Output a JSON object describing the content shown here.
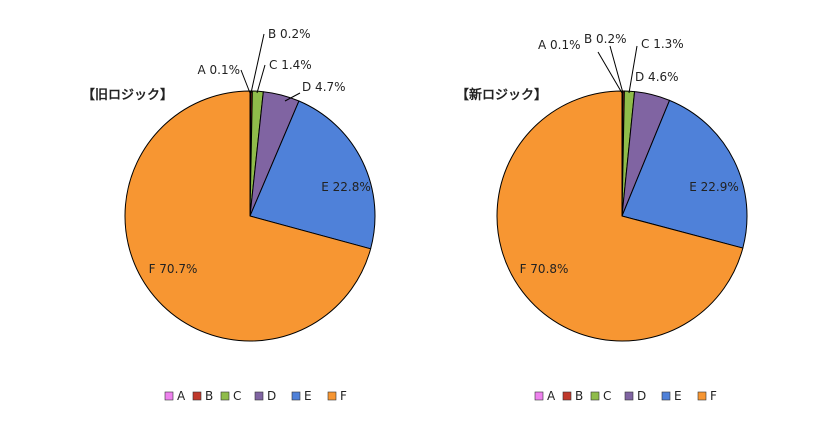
{
  "chart_data": [
    {
      "type": "pie",
      "title": "【旧ロジック】",
      "categories": [
        "A",
        "B",
        "C",
        "D",
        "E",
        "F"
      ],
      "values": [
        0.1,
        0.2,
        1.4,
        4.7,
        22.8,
        70.7
      ],
      "labels": [
        "A 0.1%",
        "B 0.2%",
        "C 1.4%",
        "D 4.7%",
        "E 22.8%",
        "F 70.7%"
      ],
      "legend": "bottom"
    },
    {
      "type": "pie",
      "title": "【新ロジック】",
      "categories": [
        "A",
        "B",
        "C",
        "D",
        "E",
        "F"
      ],
      "values": [
        0.1,
        0.2,
        1.3,
        4.6,
        22.9,
        70.8
      ],
      "labels": [
        "A 0.1%",
        "B 0.2%",
        "C 1.3%",
        "D 4.6%",
        "E 22.9%",
        "F 70.8%"
      ],
      "legend": "bottom"
    }
  ],
  "colors": [
    "#ee82ee",
    "#c0392b",
    "#8fbc4a",
    "#8064a2",
    "#4f81d9",
    "#f79632"
  ]
}
